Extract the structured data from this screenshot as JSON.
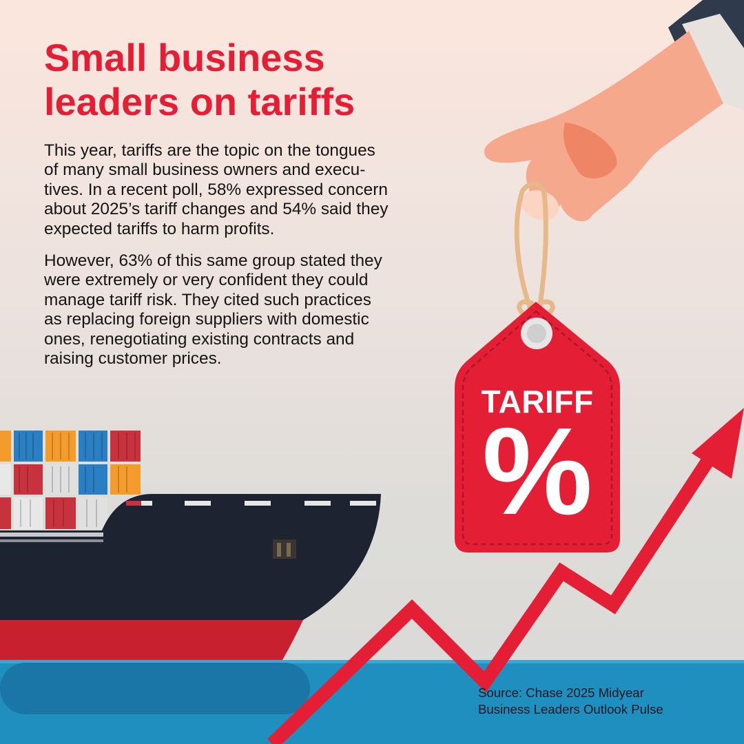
{
  "title": {
    "lines": [
      "Small business",
      "leaders on tariffs"
    ]
  },
  "body": {
    "paragraph_1": [
      "This year, tariffs are the topic on the tongues",
      "of many small business owners and execu-",
      "tives. In a recent poll, 58% expressed concern",
      "about 2025’s tariff changes and 54% said they",
      "expected tariffs to harm profits."
    ],
    "paragraph_2": [
      "However, 63% of this same group stated they",
      "were extremely or very confident they could",
      "manage tariff risk. They cited such practices",
      "as replacing foreign suppliers with domestic",
      "ones, renegotiating existing contracts and",
      "raising customer prices."
    ]
  },
  "tag": {
    "label": "TARIFF",
    "symbol": "%"
  },
  "source": {
    "lines": [
      "Source: Chase 2025 Midyear",
      "Business Leaders Outlook Pulse"
    ]
  },
  "icons": [
    "hand-icon",
    "price-tag-icon",
    "cargo-ship-icon",
    "shipping-container-icon",
    "rising-arrow-icon"
  ],
  "colors": {
    "accent_red": "#e41f35",
    "ship_hull": "#1d2330",
    "ship_stripe": "#c8202f",
    "sea": "#1f8fc0",
    "skin": "#f5a88b",
    "string": "#e7b98a"
  }
}
